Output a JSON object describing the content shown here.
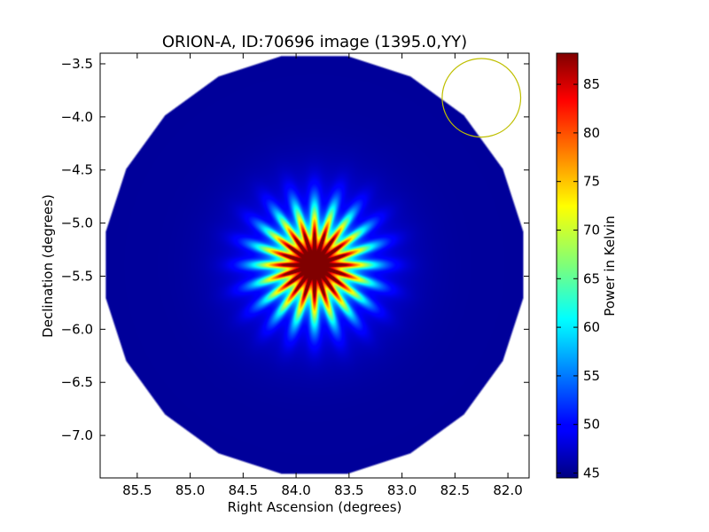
{
  "chart_data": {
    "type": "heatmap",
    "title": "ORION-A, ID:70696 image (1395.0,YY)",
    "xlabel": "Right Ascension (degrees)",
    "ylabel": "Declination (degrees)",
    "xlim": [
      85.85,
      81.8
    ],
    "ylim": [
      -7.4,
      -3.4
    ],
    "x_reversed": true,
    "x_ticks": [
      85.5,
      85.0,
      84.5,
      84.0,
      83.5,
      83.0,
      82.5,
      82.0
    ],
    "x_tick_labels": [
      "85.5",
      "85.0",
      "84.5",
      "84.0",
      "83.5",
      "83.0",
      "82.5",
      "82.0"
    ],
    "y_ticks": [
      -3.5,
      -4.0,
      -4.5,
      -5.0,
      -5.5,
      -6.0,
      -6.5,
      -7.0
    ],
    "y_tick_labels": [
      "−3.5",
      "−4.0",
      "−4.5",
      "−5.0",
      "−5.5",
      "−6.0",
      "−6.5",
      "−7.0"
    ],
    "colorbar": {
      "label": "Power in Kelvin",
      "min": 44.5,
      "max": 88.2,
      "ticks": [
        45,
        50,
        55,
        60,
        65,
        70,
        75,
        80,
        85
      ],
      "tick_labels": [
        "45",
        "50",
        "55",
        "60",
        "65",
        "70",
        "75",
        "80",
        "85"
      ],
      "colormap": "jet"
    },
    "map": {
      "center_ra": 83.83,
      "center_dec": -5.39,
      "field_radius_deg": 2.0,
      "field_sides": 20,
      "background_value": 45.5,
      "peak_value": 88,
      "core_radius_deg": 0.2,
      "sidelobe_count": 20,
      "sidelobe_extent_deg": 0.75
    },
    "beam_circle": {
      "center_ra": 82.25,
      "center_dec": -3.82,
      "radius_deg": 0.37,
      "color": "#bfbf00"
    }
  }
}
